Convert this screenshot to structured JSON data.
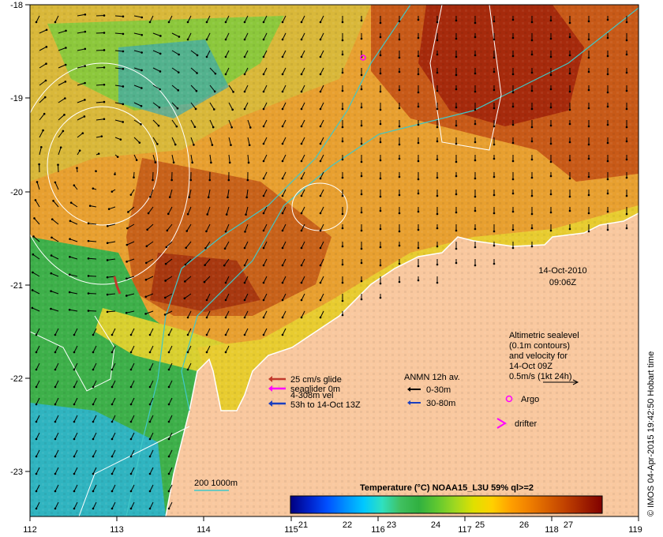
{
  "axes": {
    "x_ticks": [
      "112",
      "113",
      "114",
      "115",
      "116",
      "117",
      "118",
      "119"
    ],
    "y_ticks": [
      "-18",
      "-19",
      "-20",
      "-21",
      "-22",
      "-23"
    ]
  },
  "timestamp": {
    "date": "14-Oct-2010",
    "time": "09:06Z"
  },
  "legend_altimetry": {
    "lines": [
      "Altimetric sealevel",
      "(0.1m contours)",
      "and velocity for",
      "14-Oct 09Z",
      "0.5m/s (1kt 24h)"
    ]
  },
  "legend_glider": {
    "lines": [
      "25 cm/s glide",
      "seaglider 0m",
      "4-308m vel",
      "53h to 14-Oct 13Z"
    ],
    "colors": [
      "#c0392b",
      "#ff00ff",
      "#1a3fbf"
    ]
  },
  "legend_anmn": {
    "title": "ANMN 12h av.",
    "items": [
      {
        "label": "0-30m",
        "color": "#000000"
      },
      {
        "label": "30-80m",
        "color": "#1a3fbf"
      }
    ]
  },
  "legend_markers": {
    "argo": "Argo",
    "drifter": "drifter",
    "marker_color": "#ff00ff"
  },
  "isobath_label": "200  1000m",
  "isobath_color": "#40c8c8",
  "colorbar": {
    "title": "Temperature (°C) NOAA15_L3U 59% ql>=2",
    "tick_labels": [
      "21",
      "22",
      "23",
      "24",
      "25",
      "26",
      "27"
    ],
    "colors": [
      "#00007f",
      "#0020c8",
      "#0050ff",
      "#0090ff",
      "#00c8ff",
      "#30e0c0",
      "#40c060",
      "#30b040",
      "#60c830",
      "#a0d820",
      "#e0e000",
      "#ffd000",
      "#ffa000",
      "#f08000",
      "#d86000",
      "#c04000",
      "#a02000",
      "#800000"
    ]
  },
  "credit": "© IMOS 04-Apr-2015 19:42:50 Hobart time",
  "colors": {
    "land": "#f9c89f",
    "warm_sea": "#e89a2c",
    "hot_sea": "#b83a10",
    "cool_sea": "#3cb14a",
    "cold_sea": "#38b8c8"
  }
}
